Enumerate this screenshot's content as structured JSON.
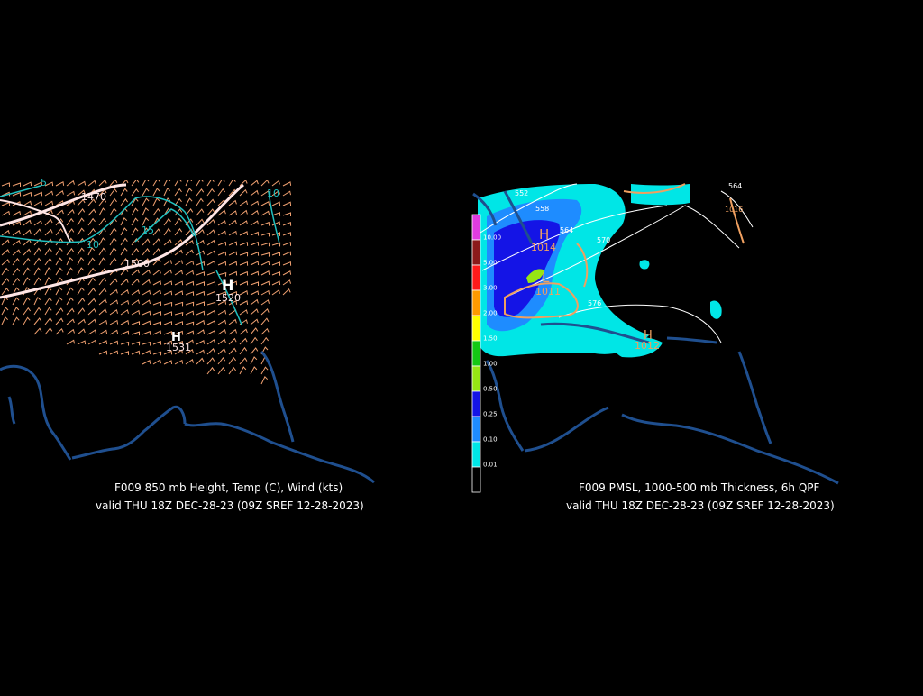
{
  "left_panel": {
    "title_line1": "F009 850 mb Height, Temp (C), Wind (kts)",
    "title_line2": "valid THU 18Z DEC-28-23 (09Z SREF 12-28-2023)",
    "isotherm_labels": [
      "5",
      "10",
      "15",
      "10"
    ],
    "height_labels": [
      "1470",
      "1500",
      "1520",
      "1531"
    ],
    "high_markers": [
      "H",
      "H"
    ]
  },
  "right_panel": {
    "title_line1": "F009 PMSL, 1000-500 mb Thickness, 6h QPF",
    "title_line2": "valid THU 18Z DEC-28-23 (09Z SREF 12-28-2023)",
    "thickness_labels": [
      "552",
      "558",
      "564",
      "570",
      "564",
      "576"
    ],
    "pressure_labels": [
      "1014",
      "1011",
      "1016",
      "1012"
    ],
    "pressure_markers": [
      "H",
      "L",
      "H"
    ],
    "qpf_legend": [
      {
        "label": "10.00",
        "color": "#e03ce0"
      },
      {
        "label": "5.00",
        "color": "#8b1a1a"
      },
      {
        "label": "3.00",
        "color": "#ff1a1a"
      },
      {
        "label": "2.00",
        "color": "#ff9a00"
      },
      {
        "label": "1.50",
        "color": "#ffff00"
      },
      {
        "label": "1.00",
        "color": "#14c814"
      },
      {
        "label": "0.50",
        "color": "#96e614"
      },
      {
        "label": "0.25",
        "color": "#1414e6"
      },
      {
        "label": "0.10",
        "color": "#1e8cff"
      },
      {
        "label": "0.01",
        "color": "#00e6e6"
      },
      {
        "label": "",
        "color": "#000000"
      }
    ]
  },
  "colors": {
    "background": "#000000",
    "coastline": "#1f4f8f",
    "wind_barbs": "#f0a070",
    "height_contour": "#ffe6e6",
    "isotherm": "#20c0c0",
    "isobar": "#f0a060",
    "thickness": "#ffffff",
    "caption_text": "#ffffff"
  }
}
